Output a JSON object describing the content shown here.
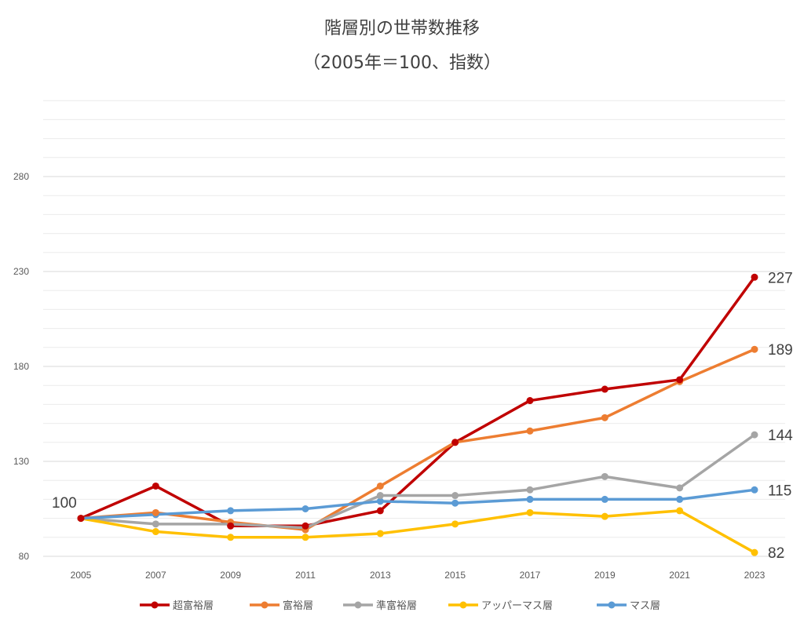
{
  "chart_data": {
    "type": "line",
    "title": "階層別の世帯数推移",
    "subtitle": "（2005年＝100、指数）",
    "xlabel": "",
    "ylabel": "",
    "x": [
      "2005",
      "2007",
      "2009",
      "2011",
      "2013",
      "2015",
      "2017",
      "2019",
      "2021",
      "2023"
    ],
    "ylim": [
      80,
      320
    ],
    "yticks": [
      80,
      130,
      180,
      230,
      280
    ],
    "minor_grid_step": 10,
    "grid": true,
    "legend_position": "bottom",
    "series": [
      {
        "name": "超富裕層",
        "color": "#C00000",
        "values": [
          100,
          117,
          96,
          96,
          104,
          140,
          162,
          168,
          173,
          227
        ],
        "end_label": "227"
      },
      {
        "name": "富裕層",
        "color": "#ED7D31",
        "values": [
          100,
          103,
          98,
          94,
          117,
          140,
          146,
          153,
          172,
          189
        ],
        "end_label": "189"
      },
      {
        "name": "準富裕層",
        "color": "#A5A5A5",
        "values": [
          100,
          97,
          97,
          95,
          112,
          112,
          115,
          122,
          116,
          144
        ],
        "end_label": "144"
      },
      {
        "name": "アッパーマス層",
        "color": "#FFC000",
        "values": [
          100,
          93,
          90,
          90,
          92,
          97,
          103,
          101,
          104,
          82
        ],
        "end_label": "82"
      },
      {
        "name": "マス層",
        "color": "#5B9BD5",
        "values": [
          100,
          102,
          104,
          105,
          109,
          108,
          110,
          110,
          110,
          115
        ],
        "end_label": "115"
      }
    ],
    "start_label": "100"
  }
}
